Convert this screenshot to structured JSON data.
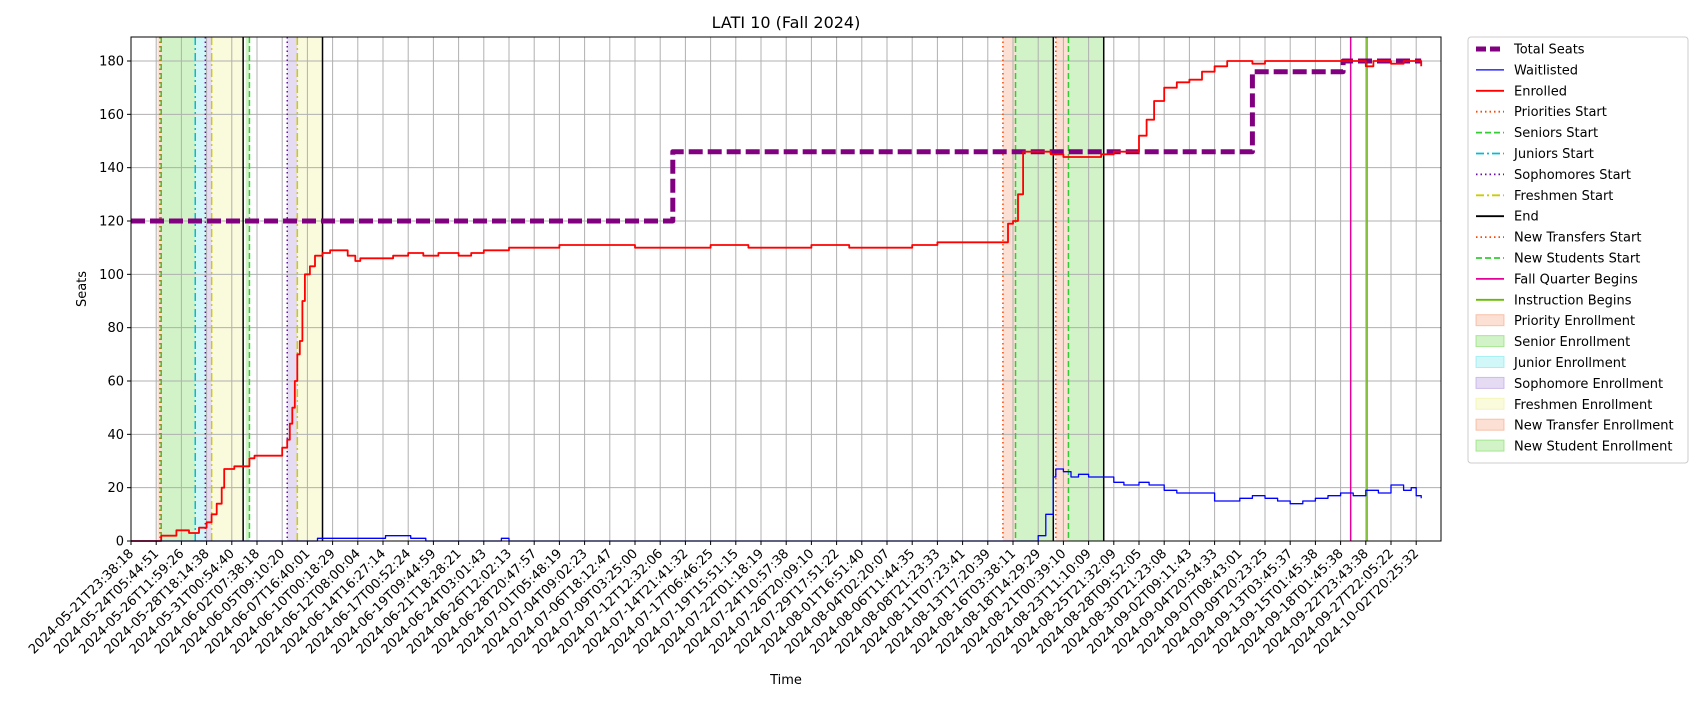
{
  "chart_data": {
    "type": "line",
    "title": "LATI 10 (Fall 2024)",
    "xlabel": "Time",
    "ylabel": "Seats",
    "ylim": [
      0,
      189
    ],
    "yticks": [
      0,
      20,
      40,
      60,
      80,
      100,
      120,
      140,
      160,
      180
    ],
    "x_tick_labels": [
      "2024-05-21T23:38:18",
      "2024-05-24T05:44:51",
      "2024-05-26T11:59:26",
      "2024-05-28T18:14:38",
      "2024-05-31T00:54:40",
      "2024-06-02T07:38:18",
      "2024-06-05T09:10:20",
      "2024-06-07T16:40:01",
      "2024-06-10T00:18:29",
      "2024-06-12T08:00:04",
      "2024-06-14T16:27:14",
      "2024-06-17T00:52:24",
      "2024-06-19T09:44:59",
      "2024-06-21T18:28:21",
      "2024-06-24T03:01:43",
      "2024-06-26T12:02:13",
      "2024-06-28T20:47:57",
      "2024-07-01T05:48:19",
      "2024-07-04T09:02:23",
      "2024-07-06T18:12:47",
      "2024-07-09T03:25:00",
      "2024-07-12T12:32:06",
      "2024-07-14T21:41:32",
      "2024-07-17T06:46:25",
      "2024-07-19T15:51:15",
      "2024-07-22T01:18:19",
      "2024-07-24T10:57:38",
      "2024-07-26T20:09:10",
      "2024-07-29T17:51:22",
      "2024-08-01T16:51:40",
      "2024-08-04T02:20:07",
      "2024-08-06T11:44:35",
      "2024-08-08T21:23:33",
      "2024-08-11T07:23:41",
      "2024-08-13T17:20:39",
      "2024-08-16T03:38:11",
      "2024-08-18T14:29:29",
      "2024-08-21T00:39:10",
      "2024-08-23T11:10:09",
      "2024-08-25T21:32:09",
      "2024-08-28T09:52:05",
      "2024-08-30T21:23:08",
      "2024-09-02T09:11:43",
      "2024-09-04T20:54:33",
      "2024-09-07T08:43:01",
      "2024-09-09T20:23:25",
      "2024-09-13T03:45:37",
      "2024-09-15T01:45:38",
      "2024-09-18T01:45:38",
      "2024-09-22T23:43:38",
      "2024-09-27T22:05:22",
      "2024-10-02T20:25:32"
    ],
    "x_index_range": [
      0,
      51.2
    ],
    "grid": true,
    "legend_position": "outside-right",
    "series": [
      {
        "name": "Total Seats",
        "color": "#800080",
        "style": "dashed-thick",
        "points": [
          [
            0,
            120
          ],
          [
            21.4,
            120
          ],
          [
            21.5,
            146
          ],
          [
            44.3,
            146
          ],
          [
            44.5,
            176
          ],
          [
            48.0,
            176
          ],
          [
            48.1,
            180
          ],
          [
            51.2,
            180
          ]
        ]
      },
      {
        "name": "Enrolled",
        "color": "#ff0000",
        "style": "solid",
        "points": [
          [
            0,
            0
          ],
          [
            1.1,
            0
          ],
          [
            1.2,
            2
          ],
          [
            1.7,
            2
          ],
          [
            1.8,
            4
          ],
          [
            2.2,
            4
          ],
          [
            2.3,
            3
          ],
          [
            2.6,
            3
          ],
          [
            2.7,
            5
          ],
          [
            3.0,
            7
          ],
          [
            3.2,
            10
          ],
          [
            3.4,
            14
          ],
          [
            3.6,
            20
          ],
          [
            3.7,
            27
          ],
          [
            4.0,
            27
          ],
          [
            4.1,
            28
          ],
          [
            4.6,
            28
          ],
          [
            4.7,
            31
          ],
          [
            4.9,
            32
          ],
          [
            5.8,
            32
          ],
          [
            6.0,
            35
          ],
          [
            6.2,
            38
          ],
          [
            6.3,
            44
          ],
          [
            6.4,
            50
          ],
          [
            6.5,
            60
          ],
          [
            6.6,
            70
          ],
          [
            6.7,
            75
          ],
          [
            6.8,
            90
          ],
          [
            6.9,
            100
          ],
          [
            7.1,
            103
          ],
          [
            7.3,
            107
          ],
          [
            7.6,
            108
          ],
          [
            7.9,
            109
          ],
          [
            8.4,
            109
          ],
          [
            8.6,
            107
          ],
          [
            8.9,
            105
          ],
          [
            9.1,
            106
          ],
          [
            10.0,
            106
          ],
          [
            10.4,
            107
          ],
          [
            11.0,
            108
          ],
          [
            11.6,
            107
          ],
          [
            12.2,
            108
          ],
          [
            13.0,
            107
          ],
          [
            13.5,
            108
          ],
          [
            14.0,
            109
          ],
          [
            15.0,
            110
          ],
          [
            16.5,
            110
          ],
          [
            17.0,
            111
          ],
          [
            19.0,
            111
          ],
          [
            20.0,
            110
          ],
          [
            22.0,
            110
          ],
          [
            23.0,
            111
          ],
          [
            24.5,
            110
          ],
          [
            26.0,
            110
          ],
          [
            27.0,
            111
          ],
          [
            28.5,
            110
          ],
          [
            30.0,
            110
          ],
          [
            31.0,
            111
          ],
          [
            32.0,
            112
          ],
          [
            33.0,
            112
          ],
          [
            34.0,
            112
          ],
          [
            34.6,
            112
          ],
          [
            34.8,
            119
          ],
          [
            35.0,
            120
          ],
          [
            35.2,
            130
          ],
          [
            35.4,
            146
          ],
          [
            36.2,
            146
          ],
          [
            36.5,
            145
          ],
          [
            37.0,
            144
          ],
          [
            38.0,
            144
          ],
          [
            38.5,
            145
          ],
          [
            39.0,
            146
          ],
          [
            39.6,
            146
          ],
          [
            40.0,
            152
          ],
          [
            40.3,
            158
          ],
          [
            40.6,
            165
          ],
          [
            41.0,
            170
          ],
          [
            41.5,
            172
          ],
          [
            42.0,
            173
          ],
          [
            42.5,
            176
          ],
          [
            43.0,
            178
          ],
          [
            43.5,
            180
          ],
          [
            44.5,
            179
          ],
          [
            45.0,
            180
          ],
          [
            48.5,
            180
          ],
          [
            49.0,
            178
          ],
          [
            49.3,
            180
          ],
          [
            50.0,
            179
          ],
          [
            50.5,
            180
          ],
          [
            51.2,
            178
          ]
        ]
      },
      {
        "name": "Waitlisted",
        "color": "#0000ff",
        "style": "solid-thin",
        "points": [
          [
            0,
            0
          ],
          [
            7.3,
            0
          ],
          [
            7.4,
            1
          ],
          [
            10.0,
            1
          ],
          [
            10.1,
            2
          ],
          [
            11.0,
            2
          ],
          [
            11.1,
            1
          ],
          [
            11.6,
            1
          ],
          [
            11.7,
            0
          ],
          [
            14.6,
            0
          ],
          [
            14.7,
            1
          ],
          [
            14.9,
            1
          ],
          [
            15.0,
            0
          ],
          [
            35.8,
            0
          ],
          [
            36.0,
            2
          ],
          [
            36.3,
            10
          ],
          [
            36.6,
            24
          ],
          [
            36.7,
            27
          ],
          [
            37.0,
            26
          ],
          [
            37.3,
            24
          ],
          [
            37.6,
            25
          ],
          [
            38.0,
            24
          ],
          [
            38.8,
            24
          ],
          [
            39.0,
            22
          ],
          [
            39.4,
            21
          ],
          [
            40.0,
            22
          ],
          [
            40.4,
            21
          ],
          [
            41.0,
            19
          ],
          [
            41.5,
            18
          ],
          [
            42.5,
            18
          ],
          [
            43.0,
            15
          ],
          [
            44.0,
            16
          ],
          [
            44.5,
            17
          ],
          [
            45.0,
            16
          ],
          [
            45.5,
            15
          ],
          [
            46.0,
            14
          ],
          [
            46.5,
            15
          ],
          [
            47.0,
            16
          ],
          [
            47.5,
            17
          ],
          [
            48.0,
            18
          ],
          [
            48.5,
            17
          ],
          [
            49.0,
            19
          ],
          [
            49.5,
            18
          ],
          [
            50.0,
            21
          ],
          [
            50.5,
            19
          ],
          [
            50.8,
            20
          ],
          [
            51.0,
            17
          ],
          [
            51.2,
            16
          ]
        ]
      }
    ],
    "events": [
      {
        "name": "Priorities Start",
        "x": 1.15,
        "color": "#ff4500",
        "style": "dotted"
      },
      {
        "name": "Seniors Start",
        "x": 1.2,
        "color": "#32cd32",
        "style": "dashed"
      },
      {
        "name": "Juniors Start",
        "x": 2.55,
        "color": "#00bcd4",
        "style": "dashdot"
      },
      {
        "name": "Sophomores Start",
        "x": 2.95,
        "color": "#6a0dad",
        "style": "dotted"
      },
      {
        "name": "Freshmen Start",
        "x": 3.2,
        "color": "#cccc00",
        "style": "dashdot"
      },
      {
        "name": "End",
        "x": 4.45,
        "color": "#000000",
        "style": "solid"
      },
      {
        "name": "Seniors Start",
        "x": 4.7,
        "color": "#32cd32",
        "style": "dashed"
      },
      {
        "name": "Sophomores Start",
        "x": 6.2,
        "color": "#6a0dad",
        "style": "dotted"
      },
      {
        "name": "Freshmen Start",
        "x": 6.6,
        "color": "#cccc00",
        "style": "dashdot"
      },
      {
        "name": "End",
        "x": 7.6,
        "color": "#000000",
        "style": "solid"
      },
      {
        "name": "New Transfers Start",
        "x": 34.6,
        "color": "#ff4500",
        "style": "dotted"
      },
      {
        "name": "New Students Start",
        "x": 35.1,
        "color": "#32cd32",
        "style": "dashed"
      },
      {
        "name": "End",
        "x": 36.6,
        "color": "#000000",
        "style": "solid"
      },
      {
        "name": "New Transfers Start",
        "x": 36.7,
        "color": "#ff4500",
        "style": "dotted"
      },
      {
        "name": "New Students Start",
        "x": 37.2,
        "color": "#32cd32",
        "style": "dashed"
      },
      {
        "name": "End",
        "x": 38.6,
        "color": "#000000",
        "style": "solid"
      },
      {
        "name": "Fall Quarter Begins",
        "x": 48.4,
        "color": "#e6009a",
        "style": "solid"
      },
      {
        "name": "Instruction Begins",
        "x": 49.05,
        "color": "#66bb00",
        "style": "solid"
      }
    ],
    "periods": [
      {
        "name": "Priority Enrollment",
        "x0": 1.05,
        "x1": 1.2,
        "color": "#f4a582"
      },
      {
        "name": "Senior Enrollment",
        "x0": 1.2,
        "x1": 2.55,
        "color": "#7ddc5f"
      },
      {
        "name": "Junior Enrollment",
        "x0": 2.55,
        "x1": 2.95,
        "color": "#7ee8ee"
      },
      {
        "name": "Sophomore Enrollment",
        "x0": 2.95,
        "x1": 3.2,
        "color": "#b49ae0"
      },
      {
        "name": "Freshmen Enrollment",
        "x0": 3.2,
        "x1": 4.45,
        "color": "#f0f09a"
      },
      {
        "name": "Senior Enrollment",
        "x0": 4.55,
        "x1": 4.7,
        "color": "#7ddc5f"
      },
      {
        "name": "Sophomore Enrollment",
        "x0": 6.2,
        "x1": 6.6,
        "color": "#b49ae0"
      },
      {
        "name": "Freshmen Enrollment",
        "x0": 6.6,
        "x1": 7.6,
        "color": "#f0f09a"
      },
      {
        "name": "New Transfer Enrollment",
        "x0": 34.6,
        "x1": 35.1,
        "color": "#f4a582"
      },
      {
        "name": "New Student Enrollment",
        "x0": 35.1,
        "x1": 36.6,
        "color": "#7ddc5f"
      },
      {
        "name": "New Transfer Enrollment",
        "x0": 36.7,
        "x1": 37.2,
        "color": "#f4a582"
      },
      {
        "name": "New Student Enrollment",
        "x0": 37.2,
        "x1": 38.6,
        "color": "#7ddc5f"
      }
    ],
    "legend": [
      {
        "label": "Total Seats",
        "kind": "line",
        "color": "#800080",
        "style": "dashed-thick"
      },
      {
        "label": "Waitlisted",
        "kind": "line",
        "color": "#0000ff",
        "style": "solid-thin"
      },
      {
        "label": "Enrolled",
        "kind": "line",
        "color": "#ff0000",
        "style": "solid"
      },
      {
        "label": "Priorities Start",
        "kind": "line",
        "color": "#ff4500",
        "style": "dotted"
      },
      {
        "label": "Seniors Start",
        "kind": "line",
        "color": "#32cd32",
        "style": "dashed"
      },
      {
        "label": "Juniors Start",
        "kind": "line",
        "color": "#00bcd4",
        "style": "dashdot"
      },
      {
        "label": "Sophomores Start",
        "kind": "line",
        "color": "#6a0dad",
        "style": "dotted"
      },
      {
        "label": "Freshmen Start",
        "kind": "line",
        "color": "#cccc00",
        "style": "dashdot"
      },
      {
        "label": "End",
        "kind": "line",
        "color": "#000000",
        "style": "solid"
      },
      {
        "label": "New Transfers Start",
        "kind": "line",
        "color": "#ff4500",
        "style": "dotted"
      },
      {
        "label": "New Students Start",
        "kind": "line",
        "color": "#32cd32",
        "style": "dashed"
      },
      {
        "label": "Fall Quarter Begins",
        "kind": "line",
        "color": "#e6009a",
        "style": "solid"
      },
      {
        "label": "Instruction Begins",
        "kind": "line",
        "color": "#66bb00",
        "style": "solid"
      },
      {
        "label": "Priority Enrollment",
        "kind": "patch",
        "color": "#f4a582"
      },
      {
        "label": "Senior Enrollment",
        "kind": "patch",
        "color": "#7ddc5f"
      },
      {
        "label": "Junior Enrollment",
        "kind": "patch",
        "color": "#7ee8ee"
      },
      {
        "label": "Sophomore Enrollment",
        "kind": "patch",
        "color": "#b49ae0"
      },
      {
        "label": "Freshmen Enrollment",
        "kind": "patch",
        "color": "#f0f09a"
      },
      {
        "label": "New Transfer Enrollment",
        "kind": "patch",
        "color": "#f4a582"
      },
      {
        "label": "New Student Enrollment",
        "kind": "patch",
        "color": "#7ddc5f"
      }
    ]
  }
}
